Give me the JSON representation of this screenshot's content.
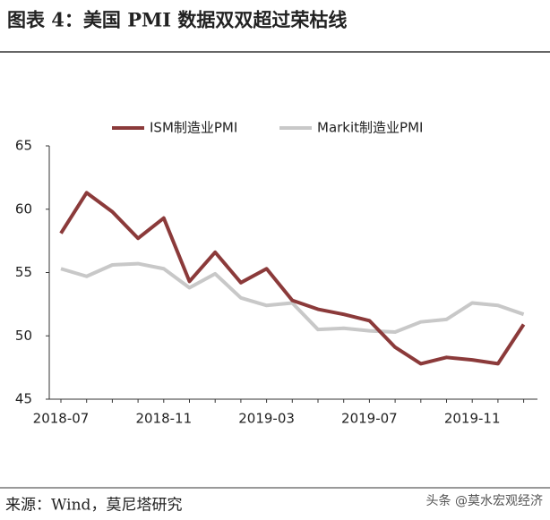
{
  "title": "图表 4：美国 PMI 数据双双超过荣枯线",
  "source": "来源：Wind，莫尼塔研究",
  "watermark": "头条 @莫水宏观经济",
  "chart_data": {
    "type": "line",
    "categories": [
      "2018-07",
      null,
      null,
      null,
      "2018-11",
      null,
      null,
      null,
      "2019-03",
      null,
      null,
      null,
      "2019-07",
      null,
      null,
      null,
      "2019-11",
      null,
      null
    ],
    "series": [
      {
        "name": "ISM制造业PMI",
        "color": "#8b3a3a",
        "values": [
          58.1,
          61.3,
          59.8,
          57.7,
          59.3,
          54.3,
          56.6,
          54.2,
          55.3,
          52.8,
          52.1,
          51.7,
          51.2,
          49.1,
          47.8,
          48.3,
          48.1,
          47.8,
          50.9
        ]
      },
      {
        "name": "Markit制造业PMI",
        "color": "#c8c8c8",
        "values": [
          55.3,
          54.7,
          55.6,
          55.7,
          55.3,
          53.8,
          54.9,
          53.0,
          52.4,
          52.6,
          50.5,
          50.6,
          50.4,
          50.3,
          51.1,
          51.3,
          52.6,
          52.4,
          51.7
        ]
      }
    ],
    "ylim": [
      45,
      65
    ],
    "yticks": [
      45,
      50,
      55,
      60,
      65
    ],
    "legend": "top"
  }
}
